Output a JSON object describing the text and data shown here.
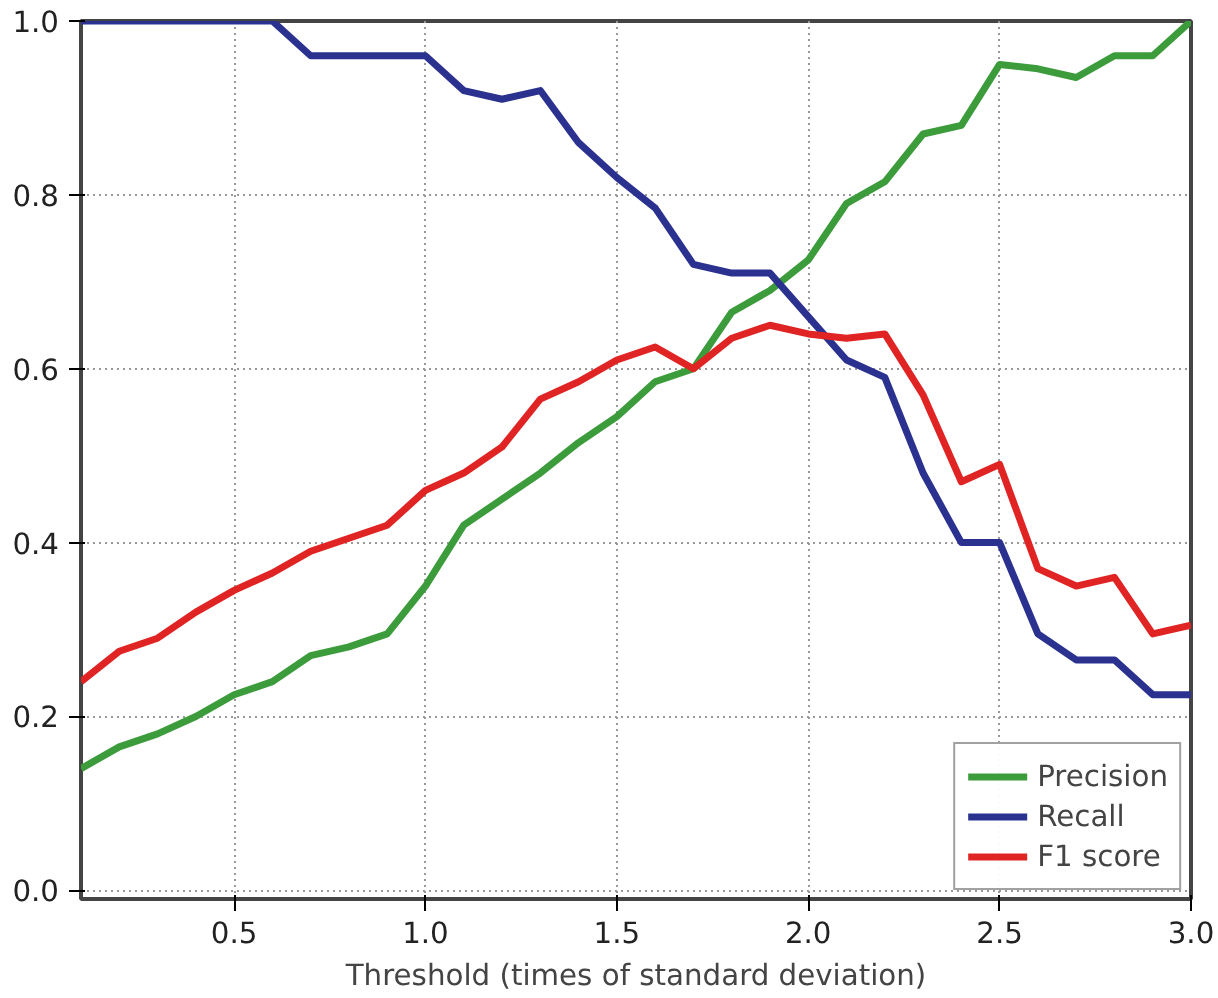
{
  "chart_data": {
    "type": "line",
    "xlabel": "Threshold (times of standard deviation)",
    "x": [
      0.1,
      0.2,
      0.3,
      0.4,
      0.5,
      0.6,
      0.7,
      0.8,
      0.9,
      1.0,
      1.1,
      1.2,
      1.3,
      1.4,
      1.5,
      1.6,
      1.7,
      1.8,
      1.9,
      2.0,
      2.1,
      2.2,
      2.3,
      2.4,
      2.5,
      2.6,
      2.7,
      2.8,
      2.9,
      3.0
    ],
    "series": [
      {
        "name": "Precision",
        "color": "#3c9c3c",
        "values": [
          0.14,
          0.165,
          0.18,
          0.2,
          0.225,
          0.24,
          0.27,
          0.28,
          0.295,
          0.35,
          0.42,
          0.45,
          0.48,
          0.515,
          0.545,
          0.585,
          0.6,
          0.665,
          0.69,
          0.725,
          0.79,
          0.815,
          0.87,
          0.88,
          0.95,
          0.945,
          0.935,
          0.96,
          0.96,
          1.0
        ]
      },
      {
        "name": "Recall",
        "color": "#2b318f",
        "values": [
          1.0,
          1.0,
          1.0,
          1.0,
          1.0,
          1.0,
          0.96,
          0.96,
          0.96,
          0.96,
          0.92,
          0.91,
          0.92,
          0.86,
          0.82,
          0.785,
          0.72,
          0.71,
          0.71,
          0.66,
          0.61,
          0.59,
          0.48,
          0.4,
          0.4,
          0.295,
          0.265,
          0.265,
          0.225,
          0.225
        ]
      },
      {
        "name": "F1 score",
        "color": "#e02424",
        "values": [
          0.24,
          0.275,
          0.29,
          0.32,
          0.345,
          0.365,
          0.39,
          0.405,
          0.42,
          0.46,
          0.48,
          0.51,
          0.565,
          0.585,
          0.61,
          0.625,
          0.6,
          0.635,
          0.65,
          0.64,
          0.635,
          0.64,
          0.57,
          0.47,
          0.49,
          0.37,
          0.35,
          0.36,
          0.295,
          0.305
        ]
      }
    ],
    "xlim": [
      0.1,
      3.0
    ],
    "ylim": [
      -0.01,
      1.0
    ],
    "xticks": [
      {
        "value": 0.5,
        "label": "0.5"
      },
      {
        "value": 1.0,
        "label": "1.0"
      },
      {
        "value": 1.5,
        "label": "1.5"
      },
      {
        "value": 2.0,
        "label": "2.0"
      },
      {
        "value": 2.5,
        "label": "2.5"
      },
      {
        "value": 3.0,
        "label": "3.0"
      }
    ],
    "yticks": [
      {
        "value": 0,
        "label": "0.0"
      },
      {
        "value": 0.2,
        "label": "0.2"
      },
      {
        "value": 0.4,
        "label": "0.4"
      },
      {
        "value": 0.6,
        "label": "0.6"
      },
      {
        "value": 0.8,
        "label": "0.8"
      },
      {
        "value": 1.0,
        "label": "1.0"
      }
    ],
    "grid": true,
    "legend": "bottom right",
    "marker": "none",
    "line_style": "solid"
  }
}
